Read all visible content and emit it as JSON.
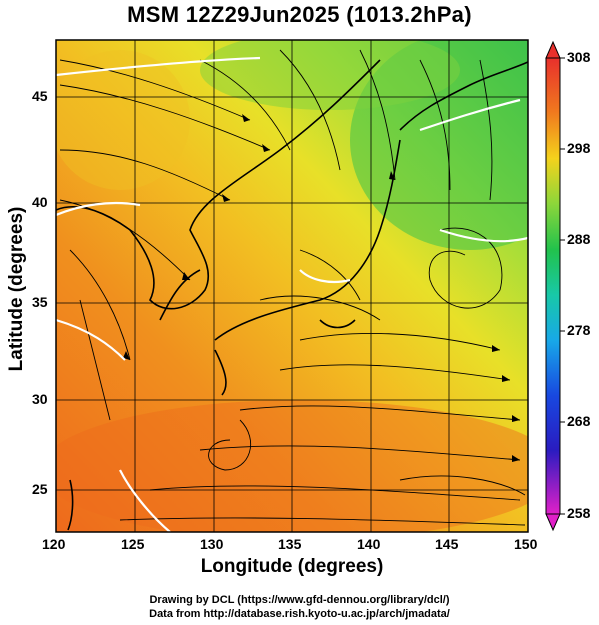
{
  "title": "MSM 12Z29Jun2025 (1013.2hPa)",
  "x_axis": {
    "label": "Longitude (degrees)",
    "range": [
      120,
      150
    ],
    "ticks": [
      "120",
      "125",
      "130",
      "135",
      "140",
      "145",
      "150"
    ]
  },
  "y_axis": {
    "label": "Latitude  (degrees)",
    "range": [
      22.4,
      47.6
    ],
    "ticks": [
      "25",
      "30",
      "35",
      "40",
      "45"
    ]
  },
  "colorbar": {
    "ticks": [
      "308",
      "298",
      "288",
      "278",
      "268",
      "258"
    ],
    "range": [
      258,
      308
    ]
  },
  "credits": [
    "Drawing by DCL (https://www.gfd-dennou.org/library/dcl/)",
    "Data from http://database.rish.kyoto-u.ac.jp/arch/jmadata/"
  ],
  "map": {
    "layer": "temperature-shading-with-streamlines",
    "colors": {
      "warm": "#ef7a1a",
      "mid": "#f5d21c",
      "cool": "#4ec846"
    }
  }
}
